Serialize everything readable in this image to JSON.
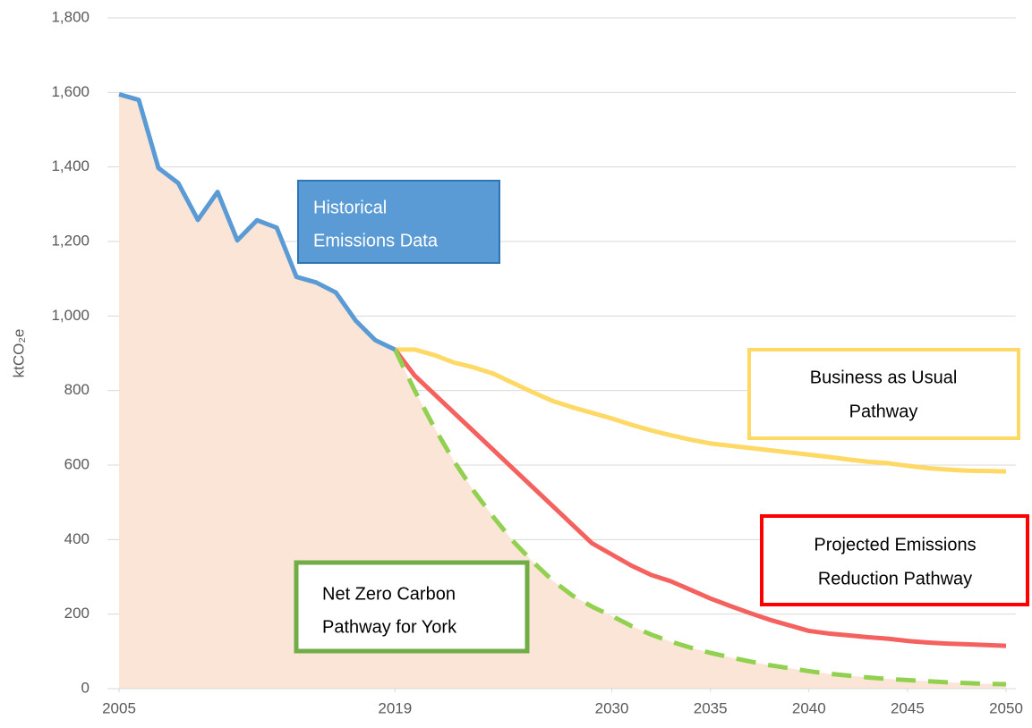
{
  "chart_data": {
    "type": "line",
    "ylabel": "ktCO₂e",
    "xlim": [
      2005,
      2050
    ],
    "xticks": [
      2005,
      2019,
      2030,
      2035,
      2040,
      2045,
      2050
    ],
    "ylim": [
      0,
      1800
    ],
    "yticks": [
      0,
      200,
      400,
      600,
      800,
      {
        "value": 1000,
        "label": "1,000"
      },
      {
        "value": 1200,
        "label": "1,200"
      },
      {
        "value": 1400,
        "label": "1,400"
      },
      {
        "value": 1600,
        "label": "1,600"
      },
      {
        "value": 1800,
        "label": "1,800"
      }
    ],
    "grid": true,
    "area_color": "#fbe5d6",
    "series": [
      {
        "color": "#5b9bd5",
        "fill": true,
        "style": "solid",
        "x": [
          2005,
          2006,
          2007,
          2008,
          2009,
          2010,
          2011,
          2012,
          2013,
          2014,
          2015,
          2016,
          2017,
          2018,
          2019
        ],
        "values": [
          1595,
          1580,
          1397,
          1357,
          1258,
          1333,
          1203,
          1257,
          1237,
          1105,
          1090,
          1063,
          988,
          935,
          910
        ]
      },
      {
        "color": "#ffd966",
        "fill": false,
        "style": "solid",
        "x": [
          2019,
          2020,
          2021,
          2022,
          2023,
          2024,
          2025,
          2026,
          2027,
          2028,
          2029,
          2030,
          2031,
          2032,
          2033,
          2034,
          2035,
          2036,
          2037,
          2038,
          2039,
          2040,
          2041,
          2042,
          2043,
          2044,
          2045,
          2046,
          2047,
          2048,
          2049,
          2050
        ],
        "values": [
          910,
          910,
          895,
          875,
          862,
          845,
          820,
          795,
          772,
          755,
          740,
          725,
          708,
          693,
          680,
          668,
          658,
          652,
          646,
          640,
          634,
          628,
          622,
          615,
          609,
          605,
          598,
          592,
          588,
          585,
          584,
          583
        ]
      },
      {
        "color": "#f4615f",
        "fill": false,
        "style": "solid",
        "x": [
          2019,
          2020,
          2021,
          2022,
          2023,
          2024,
          2025,
          2026,
          2027,
          2028,
          2029,
          2030,
          2031,
          2032,
          2033,
          2034,
          2035,
          2036,
          2037,
          2038,
          2039,
          2040,
          2041,
          2042,
          2043,
          2044,
          2045,
          2046,
          2047,
          2048,
          2049,
          2050
        ],
        "values": [
          910,
          840,
          790,
          740,
          690,
          640,
          590,
          540,
          490,
          440,
          390,
          360,
          330,
          305,
          288,
          265,
          242,
          222,
          203,
          185,
          170,
          155,
          148,
          143,
          138,
          134,
          128,
          124,
          121,
          119,
          117,
          115
        ]
      },
      {
        "color": "#92d050",
        "fill": true,
        "style": "dashed",
        "x": [
          2019,
          2020,
          2021,
          2022,
          2023,
          2024,
          2025,
          2026,
          2027,
          2028,
          2029,
          2030,
          2031,
          2032,
          2033,
          2034,
          2035,
          2036,
          2037,
          2038,
          2039,
          2040,
          2041,
          2042,
          2043,
          2044,
          2045,
          2046,
          2047,
          2048,
          2049,
          2050
        ],
        "values": [
          910,
          800,
          700,
          610,
          530,
          460,
          395,
          340,
          290,
          250,
          220,
          195,
          168,
          145,
          126,
          110,
          96,
          84,
          73,
          63,
          55,
          47,
          40,
          35,
          30,
          26,
          23,
          20,
          17,
          15,
          13,
          12
        ]
      }
    ],
    "annotations": [
      {
        "lines": [
          "Historical",
          "Emissions Data"
        ],
        "color": "#2e75b6",
        "fill": "#5b9bd5",
        "text_color": "#ffffff"
      },
      {
        "lines": [
          "Business as Usual",
          "Pathway"
        ],
        "color": "#ffd966",
        "fill": "#ffffff",
        "text_color": "#000000"
      },
      {
        "lines": [
          "Projected Emissions",
          "Reduction Pathway"
        ],
        "color": "#ff0000",
        "fill": "#ffffff",
        "text_color": "#000000"
      },
      {
        "lines": [
          "Net Zero Carbon",
          "Pathway for York"
        ],
        "color": "#70ad47",
        "fill": "#ffffff",
        "text_color": "#000000"
      }
    ]
  }
}
